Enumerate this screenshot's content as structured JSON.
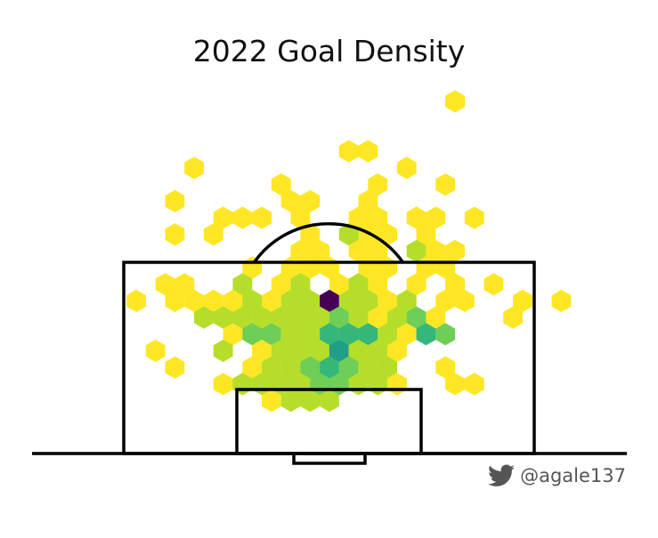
{
  "title": "2022 Goal Density",
  "credit": {
    "handle": "@agale137",
    "icon": "twitter-bird-icon",
    "color": "#555555"
  },
  "chart_data": {
    "type": "heatmap",
    "subtype": "hexbin",
    "title": "2022 Goal Density",
    "xlabel": "",
    "ylabel": "",
    "background": "pitch half (penalty box, six-yard box, arc, goal)",
    "colormap": "viridis (reversed: yellow = low, purple = high)",
    "color_stops": [
      "#fde725",
      "#b5de2b",
      "#6ece58",
      "#35b779",
      "#1f9e89",
      "#440154"
    ],
    "grid": false,
    "legend": "none",
    "hexes": [
      {
        "col": 33,
        "row": 0,
        "v": 1
      },
      {
        "col": 22,
        "row": 3,
        "v": 1
      },
      {
        "col": 24,
        "row": 3,
        "v": 1
      },
      {
        "col": 6,
        "row": 4,
        "v": 1
      },
      {
        "col": 28,
        "row": 4,
        "v": 1
      },
      {
        "col": 15,
        "row": 5,
        "v": 1
      },
      {
        "col": 25,
        "row": 5,
        "v": 1
      },
      {
        "col": 32,
        "row": 5,
        "v": 1
      },
      {
        "col": 4,
        "row": 6,
        "v": 1
      },
      {
        "col": 16,
        "row": 6,
        "v": 1
      },
      {
        "col": 18,
        "row": 6,
        "v": 1
      },
      {
        "col": 24,
        "row": 6,
        "v": 1
      },
      {
        "col": 9,
        "row": 7,
        "v": 1
      },
      {
        "col": 11,
        "row": 7,
        "v": 1
      },
      {
        "col": 13,
        "row": 7,
        "v": 1
      },
      {
        "col": 17,
        "row": 7,
        "v": 1
      },
      {
        "col": 23,
        "row": 7,
        "v": 1
      },
      {
        "col": 25,
        "row": 7,
        "v": 1
      },
      {
        "col": 29,
        "row": 7,
        "v": 1
      },
      {
        "col": 31,
        "row": 7,
        "v": 1
      },
      {
        "col": 35,
        "row": 7,
        "v": 1
      },
      {
        "col": 4,
        "row": 8,
        "v": 1
      },
      {
        "col": 8,
        "row": 8,
        "v": 1
      },
      {
        "col": 18,
        "row": 8,
        "v": 1
      },
      {
        "col": 22,
        "row": 8,
        "v": 2
      },
      {
        "col": 24,
        "row": 8,
        "v": 1
      },
      {
        "col": 26,
        "row": 8,
        "v": 1
      },
      {
        "col": 30,
        "row": 8,
        "v": 1
      },
      {
        "col": 17,
        "row": 9,
        "v": 1
      },
      {
        "col": 19,
        "row": 9,
        "v": 1
      },
      {
        "col": 23,
        "row": 9,
        "v": 1
      },
      {
        "col": 25,
        "row": 9,
        "v": 1
      },
      {
        "col": 29,
        "row": 9,
        "v": 2
      },
      {
        "col": 31,
        "row": 9,
        "v": 1
      },
      {
        "col": 33,
        "row": 9,
        "v": 1
      },
      {
        "col": 12,
        "row": 10,
        "v": 1
      },
      {
        "col": 16,
        "row": 10,
        "v": 1
      },
      {
        "col": 18,
        "row": 10,
        "v": 1
      },
      {
        "col": 20,
        "row": 10,
        "v": 1
      },
      {
        "col": 24,
        "row": 10,
        "v": 1
      },
      {
        "col": 26,
        "row": 10,
        "v": 1
      },
      {
        "col": 30,
        "row": 10,
        "v": 1
      },
      {
        "col": 32,
        "row": 10,
        "v": 1
      },
      {
        "col": 3,
        "row": 11,
        "v": 1
      },
      {
        "col": 5,
        "row": 11,
        "v": 1
      },
      {
        "col": 11,
        "row": 11,
        "v": 2
      },
      {
        "col": 15,
        "row": 11,
        "v": 1
      },
      {
        "col": 17,
        "row": 11,
        "v": 2
      },
      {
        "col": 21,
        "row": 11,
        "v": 1
      },
      {
        "col": 23,
        "row": 11,
        "v": 2
      },
      {
        "col": 25,
        "row": 11,
        "v": 1
      },
      {
        "col": 29,
        "row": 11,
        "v": 1
      },
      {
        "col": 33,
        "row": 11,
        "v": 1
      },
      {
        "col": 37,
        "row": 11,
        "v": 1
      },
      {
        "col": 0,
        "row": 12,
        "v": 1
      },
      {
        "col": 4,
        "row": 12,
        "v": 1
      },
      {
        "col": 6,
        "row": 12,
        "v": 1
      },
      {
        "col": 8,
        "row": 12,
        "v": 1
      },
      {
        "col": 10,
        "row": 12,
        "v": 1
      },
      {
        "col": 12,
        "row": 12,
        "v": 2
      },
      {
        "col": 14,
        "row": 12,
        "v": 1
      },
      {
        "col": 16,
        "row": 12,
        "v": 2
      },
      {
        "col": 18,
        "row": 12,
        "v": 2
      },
      {
        "col": 20,
        "row": 12,
        "v": 12
      },
      {
        "col": 22,
        "row": 12,
        "v": 2
      },
      {
        "col": 24,
        "row": 12,
        "v": 2
      },
      {
        "col": 26,
        "row": 12,
        "v": 1
      },
      {
        "col": 28,
        "row": 12,
        "v": 2
      },
      {
        "col": 32,
        "row": 12,
        "v": 1
      },
      {
        "col": 34,
        "row": 12,
        "v": 1
      },
      {
        "col": 40,
        "row": 12,
        "v": 1
      },
      {
        "col": 44,
        "row": 12,
        "v": 1
      },
      {
        "col": 7,
        "row": 13,
        "v": 2
      },
      {
        "col": 9,
        "row": 13,
        "v": 2
      },
      {
        "col": 11,
        "row": 13,
        "v": 2
      },
      {
        "col": 13,
        "row": 13,
        "v": 2
      },
      {
        "col": 15,
        "row": 13,
        "v": 2
      },
      {
        "col": 17,
        "row": 13,
        "v": 2
      },
      {
        "col": 19,
        "row": 13,
        "v": 2
      },
      {
        "col": 21,
        "row": 13,
        "v": 3
      },
      {
        "col": 23,
        "row": 13,
        "v": 2
      },
      {
        "col": 25,
        "row": 13,
        "v": 1
      },
      {
        "col": 27,
        "row": 13,
        "v": 2
      },
      {
        "col": 29,
        "row": 13,
        "v": 3
      },
      {
        "col": 31,
        "row": 13,
        "v": 1
      },
      {
        "col": 39,
        "row": 13,
        "v": 1
      },
      {
        "col": 10,
        "row": 14,
        "v": 1
      },
      {
        "col": 12,
        "row": 14,
        "v": 3
      },
      {
        "col": 14,
        "row": 14,
        "v": 3
      },
      {
        "col": 16,
        "row": 14,
        "v": 2
      },
      {
        "col": 18,
        "row": 14,
        "v": 2
      },
      {
        "col": 20,
        "row": 14,
        "v": 4
      },
      {
        "col": 22,
        "row": 14,
        "v": 4
      },
      {
        "col": 24,
        "row": 14,
        "v": 5
      },
      {
        "col": 26,
        "row": 14,
        "v": 2
      },
      {
        "col": 28,
        "row": 14,
        "v": 1
      },
      {
        "col": 30,
        "row": 14,
        "v": 4
      },
      {
        "col": 32,
        "row": 14,
        "v": 3
      },
      {
        "col": 2,
        "row": 15,
        "v": 1
      },
      {
        "col": 9,
        "row": 15,
        "v": 2
      },
      {
        "col": 13,
        "row": 15,
        "v": 1
      },
      {
        "col": 15,
        "row": 15,
        "v": 2
      },
      {
        "col": 17,
        "row": 15,
        "v": 2
      },
      {
        "col": 19,
        "row": 15,
        "v": 2
      },
      {
        "col": 21,
        "row": 15,
        "v": 6
      },
      {
        "col": 23,
        "row": 15,
        "v": 2
      },
      {
        "col": 25,
        "row": 15,
        "v": 2
      },
      {
        "col": 27,
        "row": 15,
        "v": 1
      },
      {
        "col": 4,
        "row": 16,
        "v": 1
      },
      {
        "col": 12,
        "row": 16,
        "v": 1
      },
      {
        "col": 14,
        "row": 16,
        "v": 2
      },
      {
        "col": 16,
        "row": 16,
        "v": 2
      },
      {
        "col": 18,
        "row": 16,
        "v": 3
      },
      {
        "col": 20,
        "row": 16,
        "v": 5
      },
      {
        "col": 22,
        "row": 16,
        "v": 3
      },
      {
        "col": 24,
        "row": 16,
        "v": 2
      },
      {
        "col": 26,
        "row": 16,
        "v": 2
      },
      {
        "col": 32,
        "row": 16,
        "v": 1
      },
      {
        "col": 9,
        "row": 17,
        "v": 1
      },
      {
        "col": 11,
        "row": 17,
        "v": 2
      },
      {
        "col": 13,
        "row": 17,
        "v": 2
      },
      {
        "col": 15,
        "row": 17,
        "v": 2
      },
      {
        "col": 17,
        "row": 17,
        "v": 2
      },
      {
        "col": 19,
        "row": 17,
        "v": 3
      },
      {
        "col": 21,
        "row": 17,
        "v": 3
      },
      {
        "col": 23,
        "row": 17,
        "v": 2
      },
      {
        "col": 25,
        "row": 17,
        "v": 2
      },
      {
        "col": 27,
        "row": 17,
        "v": 1
      },
      {
        "col": 33,
        "row": 17,
        "v": 1
      },
      {
        "col": 35,
        "row": 17,
        "v": 1
      },
      {
        "col": 14,
        "row": 18,
        "v": 1
      },
      {
        "col": 16,
        "row": 18,
        "v": 2
      },
      {
        "col": 18,
        "row": 18,
        "v": 2
      },
      {
        "col": 20,
        "row": 18,
        "v": 2
      }
    ]
  }
}
